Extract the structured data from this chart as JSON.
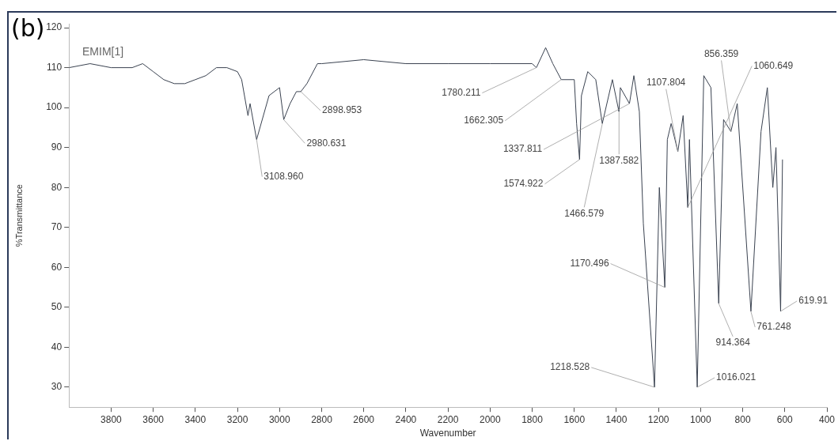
{
  "chart_data": {
    "type": "line",
    "xlabel": "Wavenumber",
    "ylabel": "%Transmittance",
    "annotations": [
      "(b)",
      "EMIM[1]",
      {
        "text": "3108.960",
        "x": 3108.96,
        "y": 92
      },
      {
        "text": "2980.631",
        "x": 2980.631,
        "y": 97
      },
      {
        "text": "2898.953",
        "x": 2898.953,
        "y": 104
      },
      {
        "text": "1780.211",
        "x": 1780.211,
        "y": 110
      },
      {
        "text": "1662.305",
        "x": 1662.305,
        "y": 107
      },
      {
        "text": "1337.811",
        "x": 1337.811,
        "y": 101
      },
      {
        "text": "1574.922",
        "x": 1574.922,
        "y": 87
      },
      {
        "text": "1466.579",
        "x": 1466.579,
        "y": 96
      },
      {
        "text": "1387.582",
        "x": 1387.582,
        "y": 99
      },
      {
        "text": "1107.804",
        "x": 1107.804,
        "y": 89
      },
      {
        "text": "856.359",
        "x": 856.359,
        "y": 94
      },
      {
        "text": "1060.649",
        "x": 1060.649,
        "y": 75
      },
      {
        "text": "1170.496",
        "x": 1170.496,
        "y": 55
      },
      {
        "text": "1218.528",
        "x": 1218.528,
        "y": 30
      },
      {
        "text": "1016.021",
        "x": 1016.021,
        "y": 30
      },
      {
        "text": "914.364",
        "x": 914.364,
        "y": 51
      },
      {
        "text": "761.248",
        "x": 761.248,
        "y": 49
      },
      {
        "text": "619.91",
        "x": 619.91,
        "y": 49
      }
    ],
    "x": [
      4000,
      3900,
      3800,
      3700,
      3650,
      3600,
      3550,
      3500,
      3450,
      3400,
      3350,
      3300,
      3250,
      3200,
      3180,
      3150,
      3140,
      3109,
      3050,
      3000,
      2980,
      2950,
      2920,
      2899,
      2870,
      2820,
      2800,
      2600,
      2400,
      2200,
      2000,
      1800,
      1780,
      1736,
      1702,
      1662,
      1600,
      1589,
      1575,
      1566,
      1536,
      1498,
      1467,
      1419,
      1388,
      1381,
      1338,
      1317,
      1291,
      1272,
      1219,
      1196,
      1170,
      1158,
      1140,
      1108,
      1083,
      1061,
      1053,
      1016,
      985,
      951,
      914,
      891,
      856,
      826,
      761,
      713,
      683,
      657,
      642,
      620,
      611
    ],
    "series": [
      {
        "color": "#3a4250",
        "values": [
          110,
          111,
          110,
          110,
          111,
          109,
          107,
          106,
          106,
          107,
          108,
          110,
          110,
          109,
          107,
          98,
          101,
          92,
          103,
          105,
          97,
          101,
          104,
          104,
          106,
          111,
          111,
          112,
          111,
          111,
          111,
          111,
          110,
          115,
          111,
          107,
          107,
          96,
          87,
          103,
          109,
          107,
          96,
          107,
          99,
          105,
          101,
          108,
          99,
          71,
          30,
          80,
          55,
          92,
          96,
          89,
          98,
          75,
          92,
          30,
          108,
          105,
          51,
          97,
          94,
          101,
          49,
          94,
          105,
          80,
          90,
          49,
          87
        ]
      }
    ],
    "xlim": [
      4000,
      400
    ],
    "xticks": [
      3800,
      3600,
      3400,
      3200,
      3000,
      2800,
      2600,
      2400,
      2200,
      2000,
      1800,
      1600,
      1400,
      1200,
      1000,
      800,
      600,
      400
    ],
    "ylim": [
      25,
      121
    ],
    "yticks": [
      30,
      40,
      50,
      60,
      70,
      80,
      90,
      100,
      110,
      120
    ],
    "grid": false,
    "legend": false,
    "marker": "none",
    "line_style": "solid"
  }
}
